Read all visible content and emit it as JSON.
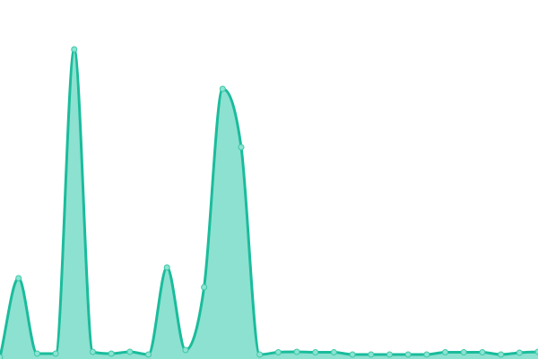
{
  "chart_data": {
    "type": "area",
    "title": "",
    "xlabel": "",
    "ylabel": "",
    "x": [
      0,
      1,
      2,
      3,
      4,
      5,
      6,
      7,
      8,
      9,
      10,
      11,
      12,
      13,
      14,
      15,
      16,
      17,
      18,
      19,
      20,
      21,
      22,
      23,
      24,
      25,
      26,
      27,
      28,
      29
    ],
    "values": [
      2,
      90,
      6,
      6,
      345,
      8,
      6,
      8,
      5,
      102,
      10,
      80,
      301,
      236,
      5,
      7.5,
      8,
      7.5,
      7.5,
      5,
      5,
      5,
      5,
      5,
      7.5,
      7.5,
      7.5,
      5,
      7,
      8
    ],
    "ylim": [
      0,
      400
    ],
    "xlim": [
      0,
      29
    ],
    "grid": false,
    "axes_visible": false,
    "curve": "smooth",
    "markers": true,
    "colors": {
      "line": "#1abc9c",
      "fill": "#8de1d0",
      "marker_fill": "#8de3d1",
      "marker_stroke": "#3cc9a9"
    }
  }
}
